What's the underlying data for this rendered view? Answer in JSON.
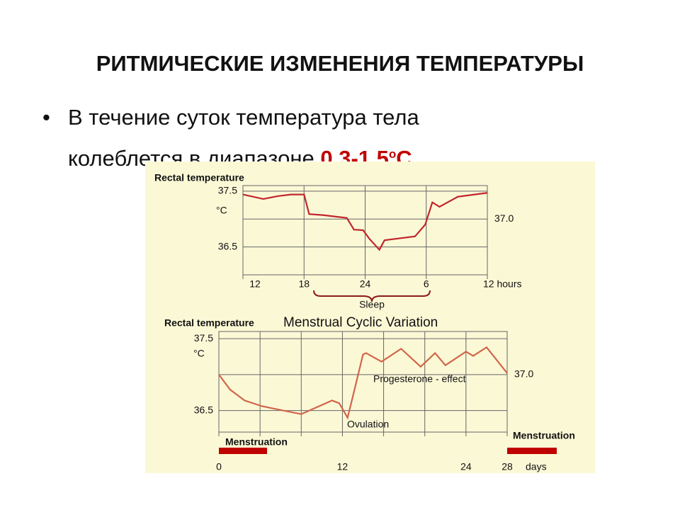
{
  "title": "РИТМИЧЕСКИЕ ИЗМЕНЕНИЯ ТЕМПЕРАТУРЫ",
  "bullet": {
    "line1": "В течение суток температура тела",
    "line2": "колеблется в диапазоне ",
    "highlight": "0,3-1,5",
    "superscript": "о",
    "unit": "С."
  },
  "chart_data": [
    {
      "type": "line",
      "title": "Rectal temperature",
      "y_unit": "°C",
      "annotation": "Sleep",
      "x": [
        12,
        14,
        15.4,
        16.7,
        18,
        18.5,
        19.9,
        22.2,
        22.9,
        23.8,
        24.4,
        25.4,
        25.9,
        28.9,
        29.9,
        30.6,
        31.3,
        33.1,
        36
      ],
      "series": [
        {
          "name": "Rectal temperature",
          "color": "#c0272d",
          "values": [
            37.44,
            37.36,
            37.41,
            37.44,
            37.44,
            37.09,
            37.07,
            37.02,
            36.81,
            36.8,
            36.65,
            36.45,
            36.62,
            36.69,
            36.9,
            37.3,
            37.22,
            37.4,
            37.47
          ]
        }
      ],
      "xlim": [
        12,
        36
      ],
      "xticks": [
        12,
        18,
        24,
        {
          "value": 30,
          "label": "6"
        },
        {
          "value": 36,
          "label": "12 hours"
        }
      ],
      "ylim": [
        36.0,
        37.6
      ],
      "yticks": [
        36.5,
        {
          "value": 37,
          "label": "37.0"
        },
        37.5
      ],
      "grid": true
    },
    {
      "type": "line",
      "title": "Menstrual Cyclic Variation",
      "y_title": "Rectal temperature",
      "y_unit": "°C",
      "x_label": "days",
      "annotations": [
        "Progesterone - effect",
        "Ovulation"
      ],
      "phase_label": "Menstruation",
      "x": [
        0,
        1.1,
        2.5,
        4.2,
        8,
        11,
        11.7,
        12.5,
        13,
        14,
        14.3,
        15.8,
        17.7,
        19.6,
        21,
        22,
        24,
        24.7,
        26,
        28
      ],
      "series": [
        {
          "name": "Rectal temperature",
          "color": "#d0664b",
          "values": [
            37.0,
            36.79,
            36.64,
            36.56,
            36.45,
            36.64,
            36.6,
            36.4,
            36.69,
            37.28,
            37.3,
            37.18,
            37.36,
            37.11,
            37.3,
            37.13,
            37.32,
            37.26,
            37.38,
            37.02
          ]
        }
      ],
      "xlim": [
        0,
        28
      ],
      "xticks": [
        0,
        {
          "value": 4,
          "label": null
        },
        {
          "value": 8,
          "label": null
        },
        12,
        {
          "value": 16,
          "label": null
        },
        {
          "value": 20,
          "label": null
        },
        24,
        28
      ],
      "ylim": [
        36.2,
        37.6
      ],
      "yticks": [
        36.5,
        {
          "value": 37,
          "label": "37.0"
        },
        37.5
      ],
      "grid": true
    }
  ]
}
